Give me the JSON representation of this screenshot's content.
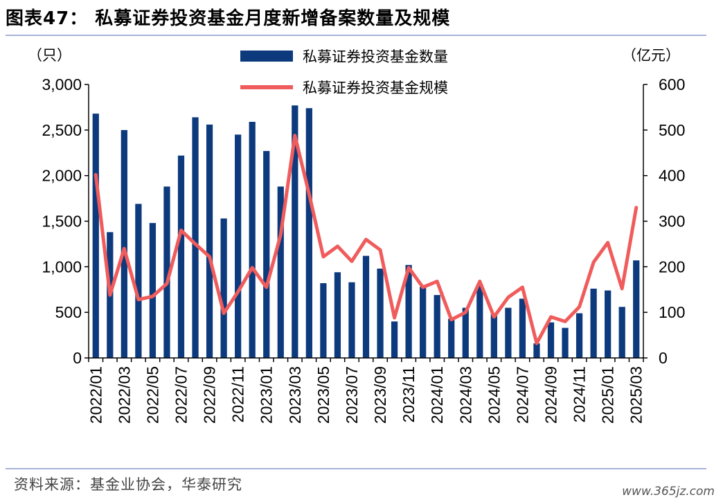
{
  "header": {
    "title": "图表47：  私募证券投资基金月度新增备案数量及规模"
  },
  "footer": {
    "source": "资料来源：基金业协会，华泰研究",
    "watermark": "www.365jz.com"
  },
  "chart_data": {
    "type": "bar+line",
    "left_unit": "（只）",
    "right_unit": "（亿元）",
    "left_axis": {
      "min": 0,
      "max": 3000,
      "ticks": [
        0,
        500,
        1000,
        1500,
        2000,
        2500,
        3000
      ],
      "tick_labels": [
        "0",
        "500",
        "1,000",
        "1,500",
        "2,000",
        "2,500",
        "3,000"
      ]
    },
    "right_axis": {
      "min": 0,
      "max": 600,
      "ticks": [
        0,
        100,
        200,
        300,
        400,
        500,
        600
      ],
      "tick_labels": [
        "0",
        "100",
        "200",
        "300",
        "400",
        "500",
        "600"
      ]
    },
    "categories": [
      "2022/01",
      "2022/02",
      "2022/03",
      "2022/04",
      "2022/05",
      "2022/06",
      "2022/07",
      "2022/08",
      "2022/09",
      "2022/10",
      "2022/11",
      "2022/12",
      "2023/01",
      "2023/02",
      "2023/03",
      "2023/04",
      "2023/05",
      "2023/06",
      "2023/07",
      "2023/08",
      "2023/09",
      "2023/10",
      "2023/11",
      "2023/12",
      "2024/01",
      "2024/02",
      "2024/03",
      "2024/04",
      "2024/05",
      "2024/06",
      "2024/07",
      "2024/08",
      "2024/09",
      "2024/10",
      "2024/11",
      "2024/12",
      "2025/01",
      "2025/02",
      "2025/03"
    ],
    "x_tick_labels": [
      "2022/01",
      "2022/03",
      "2022/05",
      "2022/07",
      "2022/09",
      "2022/11",
      "2023/01",
      "2023/03",
      "2023/05",
      "2023/07",
      "2023/09",
      "2023/11",
      "2024/01",
      "2024/03",
      "2024/05",
      "2024/07",
      "2024/09",
      "2024/11",
      "2025/01",
      "2025/03"
    ],
    "series": [
      {
        "name": "私募证券投资基金数量",
        "type": "bar",
        "axis": "left",
        "color": "#0d3a7d",
        "values": [
          2680,
          1380,
          2500,
          1690,
          1480,
          1880,
          2220,
          2640,
          2560,
          1530,
          2450,
          2590,
          2270,
          1880,
          2770,
          2740,
          820,
          940,
          830,
          1120,
          980,
          400,
          1020,
          780,
          690,
          430,
          550,
          800,
          480,
          550,
          650,
          160,
          390,
          330,
          490,
          760,
          740,
          560,
          1070
        ]
      },
      {
        "name": "私募证券投资基金规模",
        "type": "line",
        "axis": "right",
        "color": "#f05c5c",
        "values": [
          402,
          138,
          240,
          128,
          135,
          163,
          280,
          250,
          222,
          98,
          145,
          198,
          155,
          270,
          488,
          360,
          222,
          245,
          212,
          260,
          237,
          88,
          198,
          155,
          168,
          84,
          100,
          168,
          90,
          133,
          155,
          32,
          90,
          80,
          112,
          210,
          253,
          152,
          330
        ]
      }
    ],
    "legend_position": "top-center",
    "grid": false
  }
}
